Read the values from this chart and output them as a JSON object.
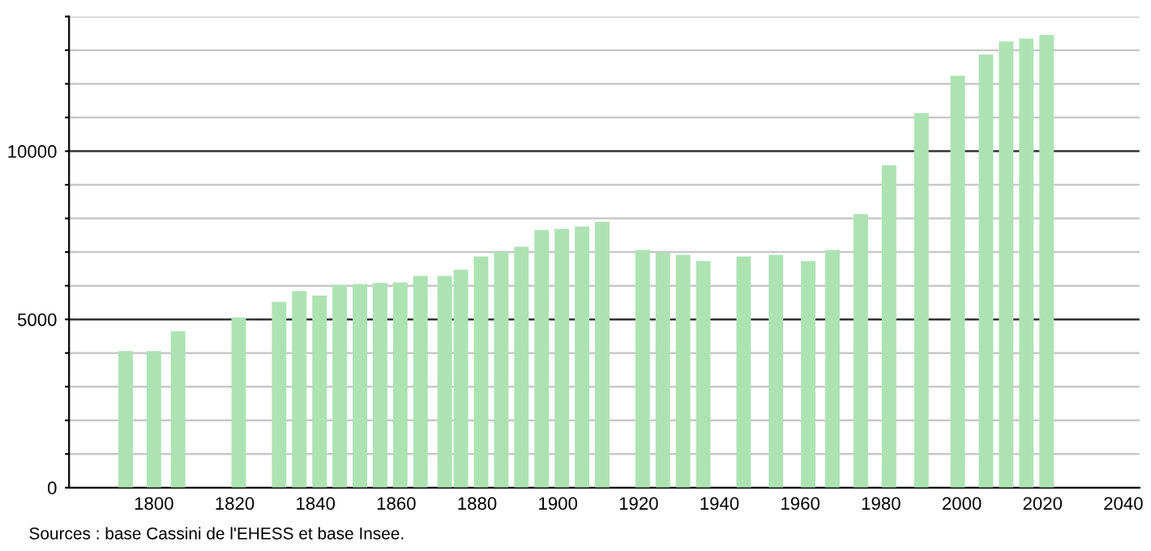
{
  "chart_data": {
    "type": "bar",
    "x": [
      1793,
      1800,
      1806,
      1821,
      1831,
      1836,
      1841,
      1846,
      1851,
      1856,
      1861,
      1866,
      1872,
      1876,
      1881,
      1886,
      1891,
      1896,
      1901,
      1906,
      1911,
      1921,
      1926,
      1931,
      1936,
      1946,
      1954,
      1962,
      1968,
      1975,
      1982,
      1990,
      1999,
      2006,
      2011,
      2016,
      2021
    ],
    "values": [
      4060,
      4060,
      4650,
      5060,
      5520,
      5840,
      5710,
      6020,
      6050,
      6080,
      6100,
      6290,
      6290,
      6480,
      6870,
      7000,
      7160,
      7650,
      7690,
      7760,
      7900,
      7060,
      6980,
      6920,
      6730,
      6870,
      6920,
      6730,
      7060,
      8130,
      9580,
      11130,
      12240,
      12870,
      13260,
      13350,
      13450
    ],
    "color": "#ade3b3",
    "xlim": [
      1779,
      2044
    ],
    "xticks": [
      1800,
      1820,
      1840,
      1860,
      1880,
      1900,
      1920,
      1940,
      1960,
      1980,
      2000,
      2020,
      2040
    ],
    "ylim": [
      0,
      14000
    ],
    "yticks": [
      0,
      {
        "value": 1000,
        "label": null
      },
      {
        "value": 2000,
        "label": null
      },
      {
        "value": 3000,
        "label": null
      },
      {
        "value": 4000,
        "label": null
      },
      5000,
      {
        "value": 6000,
        "label": null
      },
      {
        "value": 7000,
        "label": null
      },
      {
        "value": 8000,
        "label": null
      },
      {
        "value": 9000,
        "label": null
      },
      10000,
      {
        "value": 11000,
        "label": null
      },
      {
        "value": 12000,
        "label": null
      },
      {
        "value": 13000,
        "label": null
      },
      {
        "value": 14000,
        "label": null
      }
    ],
    "grid": "y",
    "annotations": [
      "Sources : base Cassini de l'EHESS et base Insee."
    ]
  }
}
